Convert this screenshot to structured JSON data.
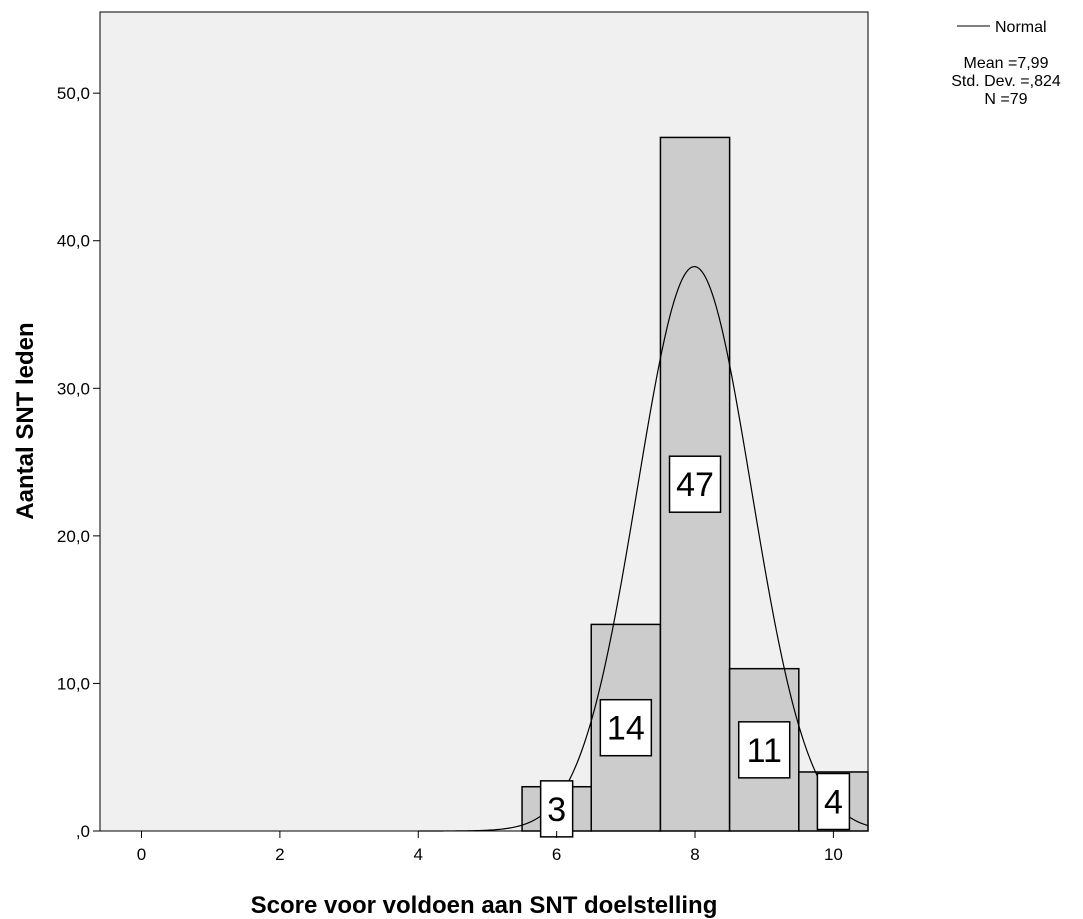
{
  "chart_data": {
    "type": "bar",
    "subtype": "histogram",
    "xlabel": "Score voor voldoen aan SNT doelstelling",
    "ylabel": "Aantal SNT leden",
    "xlim": [
      -0.6,
      10.5
    ],
    "ylim": [
      0,
      55.5
    ],
    "x_ticks": [
      0,
      2,
      4,
      6,
      8,
      10
    ],
    "x_tick_labels": [
      "0",
      "2",
      "4",
      "6",
      "8",
      "10"
    ],
    "y_ticks": [
      0,
      10,
      20,
      30,
      40,
      50
    ],
    "y_tick_labels": [
      ",0",
      "10,0",
      "20,0",
      "30,0",
      "40,0",
      "50,0"
    ],
    "bins": [
      {
        "x": 6,
        "value": 3,
        "label": "3"
      },
      {
        "x": 7,
        "value": 14,
        "label": "14"
      },
      {
        "x": 8,
        "value": 47,
        "label": "47"
      },
      {
        "x": 9,
        "value": 11,
        "label": "11"
      },
      {
        "x": 10,
        "value": 4,
        "label": "4"
      }
    ],
    "bin_width": 1,
    "normal_curve": {
      "mean": 7.99,
      "std": 0.824,
      "n": 79
    },
    "legend": {
      "entry": "Normal",
      "stats": [
        "Mean =7,99",
        "Std. Dev. =,824",
        "N =79"
      ],
      "placement": "top-right outside plot"
    },
    "colors": {
      "plot_background": "#f0f0f0",
      "bar_fill": "#cccccc",
      "bar_stroke": "#000000",
      "curve": "#000000"
    },
    "grid": false
  }
}
